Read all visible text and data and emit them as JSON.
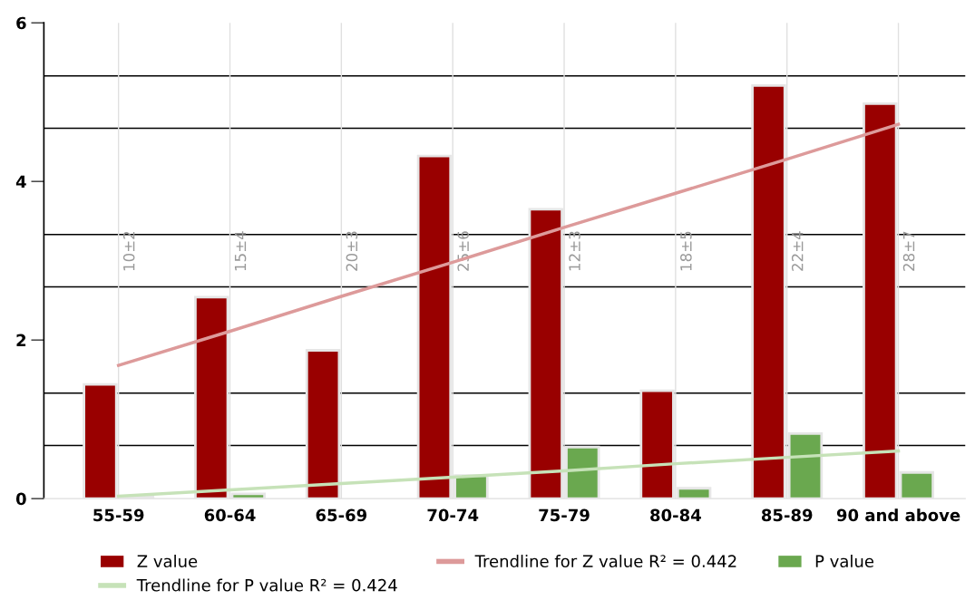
{
  "chart_data": {
    "type": "bar",
    "categories": [
      "55-59",
      "60-64",
      "65-69",
      "70-74",
      "75-79",
      "80-84",
      "85-89",
      "90 and above"
    ],
    "series": [
      {
        "name": "Z value",
        "color": "#990000",
        "values": [
          1.44,
          2.54,
          1.87,
          4.32,
          3.65,
          1.36,
          5.21,
          4.98
        ]
      },
      {
        "name": "Trendline for Z value R² = 0.442",
        "type": "line",
        "color": "#dd9a9a",
        "values": [
          1.68,
          2.11,
          2.55,
          2.98,
          3.42,
          3.85,
          4.28,
          4.72
        ]
      },
      {
        "name": "P value",
        "color": "#6aa84f",
        "values": [
          0.02,
          0.06,
          0,
          0.29,
          0.65,
          0.13,
          0.82,
          0.33
        ]
      },
      {
        "name": "Trendline for P value R² = 0.424",
        "type": "line",
        "color": "#c6e2b8",
        "values": [
          0.03,
          0.11,
          0.19,
          0.27,
          0.35,
          0.44,
          0.52,
          0.6
        ]
      }
    ],
    "ylim": [
      0,
      6
    ],
    "yticks": [
      0,
      2,
      4,
      6
    ],
    "grid": "x",
    "legend": "bottom",
    "ref_lines": [
      {
        "axis": "y",
        "value": 0.67,
        "color": "#000000"
      },
      {
        "axis": "y",
        "value": 1.33,
        "color": "#000000"
      },
      {
        "axis": "y",
        "value": 2.67,
        "color": "#000000"
      },
      {
        "axis": "y",
        "value": 3.33,
        "color": "#000000"
      },
      {
        "axis": "y",
        "value": 4.67,
        "color": "#000000"
      },
      {
        "axis": "y",
        "value": 5.33,
        "color": "#000000"
      }
    ],
    "annotations": [
      "10±2",
      "15±4",
      "20±3",
      "25±6",
      "12±3",
      "18±5",
      "22±4",
      "28±7"
    ]
  }
}
